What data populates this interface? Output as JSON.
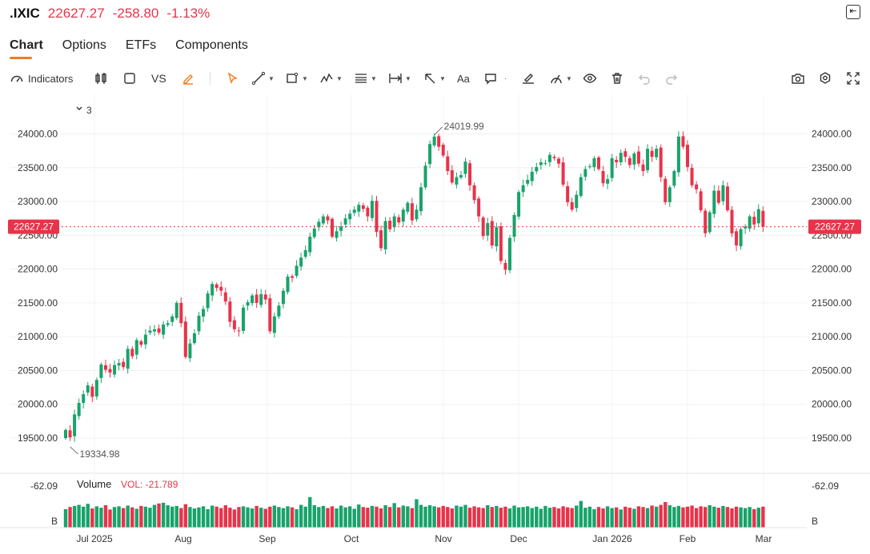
{
  "header": {
    "symbol": ".IXIC",
    "price": "22627.27",
    "change": "-258.80",
    "change_pct": "-1.13%"
  },
  "tabs": [
    {
      "label": "Chart",
      "active": true
    },
    {
      "label": "Options",
      "active": false
    },
    {
      "label": "ETFs",
      "active": false
    },
    {
      "label": "Components",
      "active": false
    }
  ],
  "toolbar": {
    "indicators_label": "Indicators",
    "vs_label": "VS",
    "text_tool_label": "Aa"
  },
  "colors": {
    "up": "#18a36b",
    "down": "#e8334a",
    "accent": "#f07c1f"
  },
  "chart_data": {
    "type": "candlestick",
    "panel_toggle_label": "3",
    "y_ticks": [
      24000,
      23500,
      23000,
      22500,
      22000,
      21500,
      21000,
      20500,
      20000,
      19500
    ],
    "y_tick_labels": [
      "24000.00",
      "23500.00",
      "23000.00",
      "22500.00",
      "22000.00",
      "21500.00",
      "21000.00",
      "20500.00",
      "20000.00",
      "19500.00"
    ],
    "ylim": [
      19250,
      24300
    ],
    "x_labels": [
      "Jul 2025",
      "Aug",
      "Sep",
      "Oct",
      "Nov",
      "Dec",
      "Jan 2026",
      "Feb",
      "Mar"
    ],
    "current_price_label": "22627.27",
    "current_price": 22627.27,
    "high_annotation": {
      "label": "24019.99",
      "value": 24019.99
    },
    "low_annotation": {
      "label": "19334.98",
      "value": 19334.98
    },
    "closes": [
      19620,
      19510,
      19850,
      20020,
      20150,
      20280,
      20110,
      20360,
      20590,
      20510,
      20470,
      20580,
      20610,
      20550,
      20820,
      20710,
      20950,
      20880,
      21030,
      21090,
      21110,
      21060,
      21180,
      21200,
      21300,
      21500,
      21200,
      20700,
      20900,
      21050,
      21310,
      21410,
      21640,
      21780,
      21720,
      21680,
      21520,
      21220,
      21110,
      21080,
      21430,
      21510,
      21610,
      21500,
      21630,
      21550,
      21080,
      21300,
      21460,
      21680,
      21890,
      21870,
      22050,
      22170,
      22280,
      22480,
      22600,
      22700,
      22780,
      22720,
      22480,
      22560,
      22630,
      22750,
      22820,
      22880,
      22950,
      22890,
      22780,
      23010,
      22550,
      22310,
      22710,
      22590,
      22780,
      22690,
      22880,
      22980,
      22720,
      22880,
      23210,
      23530,
      23850,
      23960,
      23810,
      23680,
      23450,
      23280,
      23360,
      23390,
      23590,
      23240,
      23020,
      22780,
      22490,
      22680,
      22350,
      22620,
      22120,
      21990,
      22460,
      22800,
      23140,
      23240,
      23320,
      23440,
      23510,
      23580,
      23570,
      23690,
      23640,
      23560,
      23250,
      22990,
      22880,
      23100,
      23360,
      23480,
      23520,
      23640,
      23480,
      23270,
      23330,
      23640,
      23580,
      23720,
      23660,
      23540,
      23710,
      23560,
      23450,
      23780,
      23660,
      23780,
      23360,
      22990,
      23210,
      23450,
      23960,
      23810,
      23510,
      23240,
      23180,
      22870,
      22530,
      22840,
      23160,
      22980,
      23240,
      22870,
      22530,
      22350,
      22590,
      22630,
      22780,
      22660,
      22886,
      22627
    ],
    "volume_label": "Volume",
    "volume_value_label": "VOL: -21.789",
    "volume_top_label": "-62.09",
    "volume_unit_label": "B",
    "volumes": [
      5.2,
      5.8,
      6.1,
      6.4,
      5.9,
      6.7,
      5.4,
      6.0,
      5.6,
      6.3,
      5.1,
      5.8,
      6.0,
      5.5,
      6.2,
      5.7,
      5.3,
      6.1,
      5.9,
      5.6,
      6.4,
      6.8,
      7.0,
      6.3,
      5.9,
      6.1,
      5.5,
      6.6,
      5.8,
      5.4,
      5.7,
      6.0,
      5.2,
      6.2,
      5.9,
      5.5,
      6.3,
      5.6,
      5.1,
      5.8,
      6.0,
      5.7,
      5.4,
      6.1,
      5.6,
      5.3,
      5.9,
      6.2,
      5.8,
      5.5,
      6.0,
      5.7,
      5.2,
      6.4,
      5.9,
      8.6,
      6.3,
      5.8,
      6.1,
      5.5,
      6.0,
      5.4,
      6.2,
      5.7,
      6.0,
      5.3,
      6.5,
      5.8,
      5.6,
      6.1,
      5.9,
      5.4,
      6.3,
      5.8,
      6.9,
      5.7,
      6.2,
      6.0,
      5.5,
      8.0,
      6.4,
      5.9,
      6.3,
      6.0,
      5.7,
      6.1,
      5.8,
      5.4,
      6.2,
      5.9,
      6.4,
      5.6,
      6.0,
      5.7,
      5.5,
      6.3,
      5.8,
      6.1,
      5.6,
      5.9,
      5.4,
      6.2,
      5.7,
      5.8,
      6.0,
      5.5,
      5.9,
      5.3,
      6.1,
      5.6,
      5.8,
      5.4,
      6.0,
      5.7,
      5.5,
      6.2,
      7.5,
      5.6,
      5.9,
      5.2,
      5.8,
      5.4,
      6.0,
      5.5,
      5.7,
      5.1,
      5.9,
      5.6,
      5.3,
      6.0,
      5.8,
      5.5,
      6.2,
      5.9,
      6.4,
      7.2,
      6.3,
      5.8,
      6.1,
      5.7,
      5.9,
      6.2,
      5.5,
      6.0,
      5.8,
      6.3,
      5.9,
      5.6,
      6.1,
      5.8,
      5.4,
      5.9,
      5.7,
      5.5,
      5.8,
      5.2,
      5.6,
      5.9
    ]
  }
}
